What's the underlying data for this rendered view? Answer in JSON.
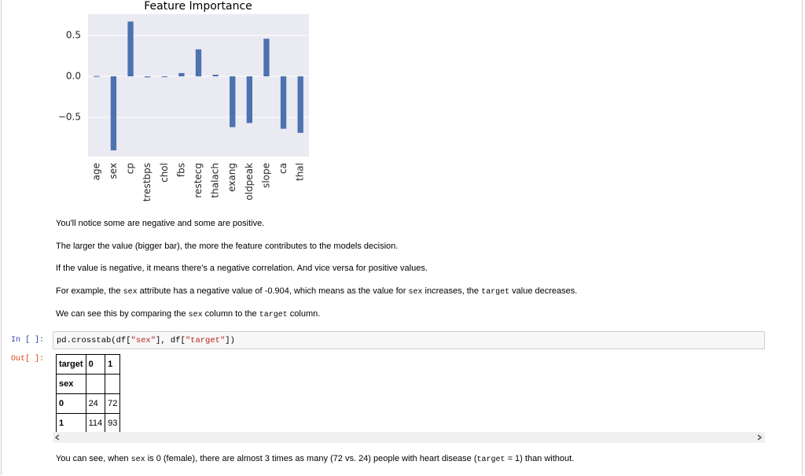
{
  "chart_data": {
    "type": "bar",
    "title": "Feature Importance",
    "categories": [
      "age",
      "sex",
      "cp",
      "trestbps",
      "chol",
      "fbs",
      "restecg",
      "thalach",
      "exang",
      "oldpeak",
      "slope",
      "ca",
      "thal"
    ],
    "values": [
      0.004,
      -0.904,
      0.67,
      -0.012,
      -0.002,
      0.04,
      0.33,
      0.02,
      -0.62,
      -0.57,
      0.46,
      -0.64,
      -0.69
    ],
    "color": "#4c72b0",
    "background": "#eaeaf2",
    "ylim": [
      -0.98,
      0.76
    ],
    "yticks": [
      {
        "value": -0.5,
        "label": "−0.5"
      },
      {
        "value": 0,
        "label": "0.0"
      },
      0.5
    ],
    "grid": true
  },
  "markdown": {
    "paragraphs": [
      [
        {
          "text": "You'll notice some are negative and some are positive."
        }
      ],
      [
        {
          "text": "The larger the value (bigger bar), the more the feature contributes to the models decision."
        }
      ],
      [
        {
          "text": "If the value is negative, it means there's a negative correlation. And vice versa for positive values."
        }
      ],
      [
        {
          "text": "For example, the "
        },
        {
          "code": "sex"
        },
        {
          "text": " attribute has a negative value of -0.904, which means as the value for "
        },
        {
          "code": "sex"
        },
        {
          "text": " increases, the "
        },
        {
          "code": "target"
        },
        {
          "text": " value decreases."
        }
      ],
      [
        {
          "text": "We can see this by comparing the "
        },
        {
          "code": "sex"
        },
        {
          "text": " column to the "
        },
        {
          "code": "target"
        },
        {
          "text": " column."
        }
      ]
    ]
  },
  "code_cell": {
    "input_prompt": "In [ ]:",
    "output_prompt": "Out[ ]:",
    "source": [
      {
        "text": "pd.crosstab(df["
      },
      {
        "string": "\"sex\""
      },
      {
        "text": "], df["
      },
      {
        "string": "\"target\""
      },
      {
        "text": "])"
      }
    ]
  },
  "table": {
    "columns_name": "target",
    "columns": [
      "0",
      "1"
    ],
    "index_name": "sex",
    "rows": [
      [
        "0",
        "24",
        "72"
      ],
      [
        "1",
        "114",
        "93"
      ]
    ]
  },
  "final_paragraph": [
    {
      "text": "You can see, when "
    },
    {
      "code": "sex"
    },
    {
      "text": " is 0 (female), there are almost 3 times as many (72 vs. 24) people with heart disease ("
    },
    {
      "code": "target"
    },
    {
      "text": " = 1) than without."
    }
  ]
}
